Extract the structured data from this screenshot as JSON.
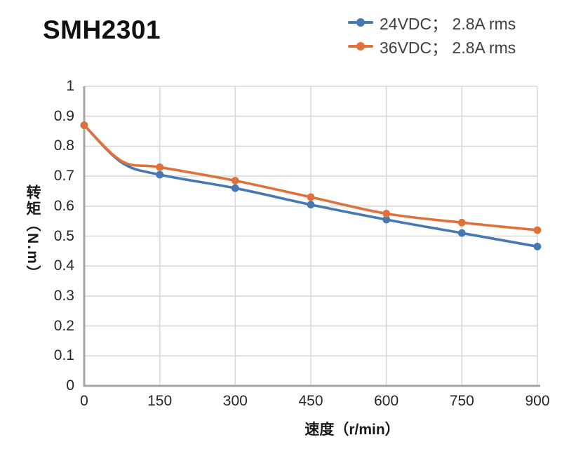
{
  "title": "SMH2301",
  "chart_data": {
    "type": "line",
    "title": "SMH2301",
    "xlabel": "速度（r/min）",
    "ylabel": "转矩（N.m）",
    "grid": true,
    "legend_position": "top-right",
    "x_axis": {
      "min": 0,
      "max": 900,
      "step": 150,
      "tick_labels": [
        "0",
        "150",
        "300",
        "450",
        "600",
        "750",
        "900"
      ]
    },
    "y_axis": {
      "min": 0,
      "max": 1,
      "step": 0.1,
      "tick_labels": [
        "0",
        "0.1",
        "0.2",
        "0.3",
        "0.4",
        "0.5",
        "0.6",
        "0.7",
        "0.8",
        "0.9",
        "1"
      ]
    },
    "series": [
      {
        "name": "24VDC； 2.8A rms",
        "color": "#4678B4",
        "points": [
          {
            "x": 0,
            "y": 0.87,
            "marker": true
          },
          {
            "x": 75,
            "y": 0.745,
            "marker": false
          },
          {
            "x": 150,
            "y": 0.705,
            "marker": true
          },
          {
            "x": 300,
            "y": 0.66,
            "marker": true
          },
          {
            "x": 450,
            "y": 0.605,
            "marker": true
          },
          {
            "x": 600,
            "y": 0.555,
            "marker": true
          },
          {
            "x": 750,
            "y": 0.51,
            "marker": true
          },
          {
            "x": 900,
            "y": 0.465,
            "marker": true
          }
        ]
      },
      {
        "name": "36VDC； 2.8A rms",
        "color": "#E0713A",
        "points": [
          {
            "x": 0,
            "y": 0.87,
            "marker": true
          },
          {
            "x": 75,
            "y": 0.75,
            "marker": false
          },
          {
            "x": 150,
            "y": 0.73,
            "marker": true
          },
          {
            "x": 300,
            "y": 0.685,
            "marker": true
          },
          {
            "x": 450,
            "y": 0.63,
            "marker": true
          },
          {
            "x": 600,
            "y": 0.575,
            "marker": true
          },
          {
            "x": 750,
            "y": 0.545,
            "marker": true
          },
          {
            "x": 900,
            "y": 0.52,
            "marker": true
          }
        ]
      }
    ]
  },
  "colors": {
    "gridline": "#D9D9D9",
    "axis_line": "#A6A6A6",
    "tick_text": "#262626",
    "legend_text": "#3F3F3F",
    "title_text": "#111111"
  }
}
